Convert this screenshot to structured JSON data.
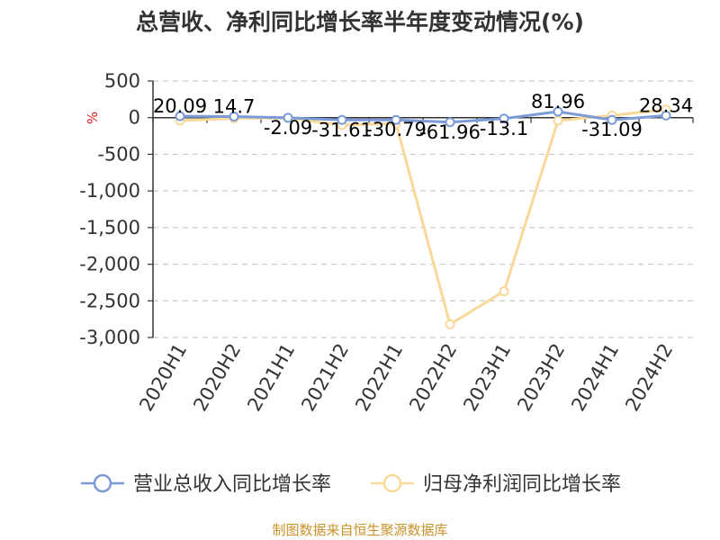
{
  "chart_data": {
    "type": "line",
    "title": "总营收、净利同比增长率半年度变动情况(%)",
    "ylabel": "%",
    "ylim": [
      -3000,
      500
    ],
    "yticks": [
      500,
      0,
      -500,
      -1000,
      -1500,
      -2000,
      -2500,
      -3000
    ],
    "ytick_labels": [
      "500",
      "0",
      "-500",
      "-1,000",
      "-1,500",
      "-2,000",
      "-2,500",
      "-3,000"
    ],
    "categories": [
      "2020H1",
      "2020H2",
      "2021H1",
      "2021H2",
      "2022H1",
      "2022H2",
      "2023H1",
      "2023H2",
      "2024H1",
      "2024H2"
    ],
    "grid": true,
    "legend_position": "bottom",
    "series": [
      {
        "name": "营业总收入同比增长率",
        "color": "#7b9ad8",
        "values": [
          20.09,
          14.7,
          -2.09,
          -31.61,
          -30.79,
          -61.96,
          -13.1,
          81.96,
          -31.09,
          28.34
        ],
        "labels": [
          "20.09",
          "14.7",
          "-2.09",
          "-31.61",
          "-30.79",
          "-61.96",
          "-13.1",
          "81.96",
          "-31.09",
          "28.34"
        ]
      },
      {
        "name": "归母净利润同比增长率",
        "color": "#f9d99a",
        "values": [
          -40,
          -10,
          -5,
          -100,
          -80,
          -2820,
          -2370,
          -40,
          30,
          110
        ]
      }
    ],
    "source": "制图数据来自恒生聚源数据库"
  }
}
